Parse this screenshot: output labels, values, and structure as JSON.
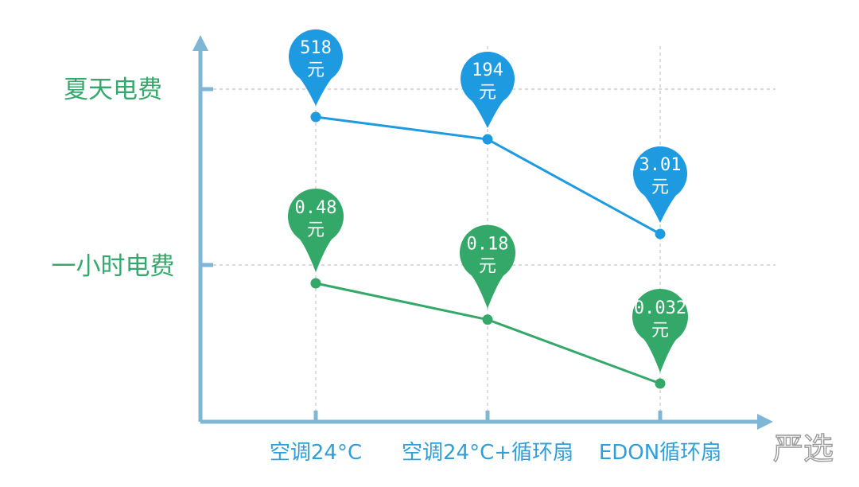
{
  "chart_data": {
    "type": "line",
    "categories": [
      "空调24°C",
      "空调24°C+循环扇",
      "EDON循环扇"
    ],
    "y_labels": [
      "夏天电费",
      "一小时电费"
    ],
    "series": [
      {
        "name": "夏天电费",
        "color": "#1e9be0",
        "values": [
          518,
          194,
          3.01
        ],
        "labels": [
          "518",
          "194",
          "3.01"
        ],
        "unit": "元"
      },
      {
        "name": "一小时电费",
        "color": "#33a868",
        "values": [
          0.48,
          0.18,
          0.032
        ],
        "labels": [
          "0.48",
          "0.18",
          "0.032"
        ],
        "unit": "元"
      }
    ],
    "grid": true,
    "axis_color": "#7fb6d6"
  },
  "watermark": "严选"
}
